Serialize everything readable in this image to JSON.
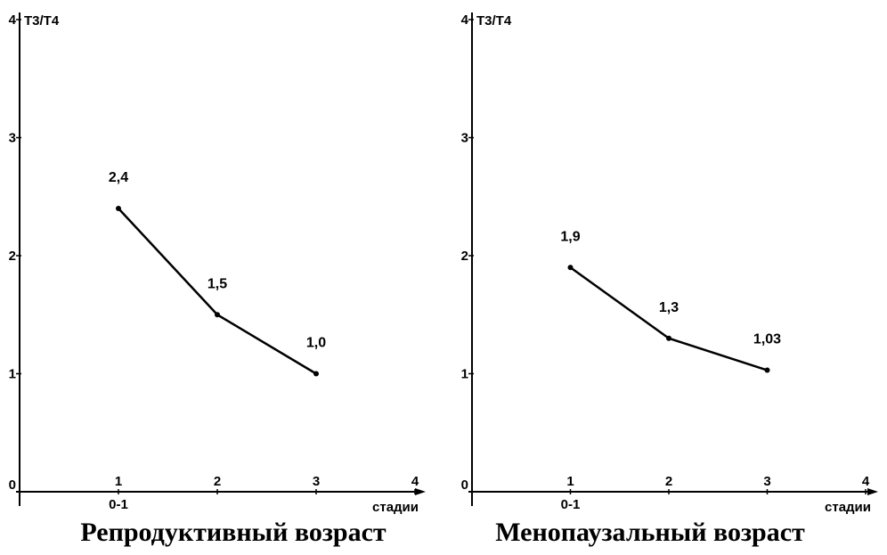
{
  "chart_data": [
    {
      "type": "line",
      "title": "Репродуктивный возраст",
      "ylabel": "Т3/Т4",
      "xlabel": "стадии",
      "x_ticks": [
        "1",
        "2",
        "3",
        "4"
      ],
      "x_sub_tick": "0-1",
      "y_ticks": [
        "0",
        "1",
        "2",
        "3",
        "4"
      ],
      "xlim": [
        0,
        4
      ],
      "ylim": [
        0,
        4
      ],
      "grid": false,
      "x": [
        1,
        2,
        3
      ],
      "values": [
        2.4,
        1.5,
        1.0
      ],
      "value_labels": [
        "2,4",
        "1,5",
        "1,0"
      ]
    },
    {
      "type": "line",
      "title": "Менопаузальный возраст",
      "ylabel": "Т3/Т4",
      "xlabel": "стадии",
      "x_ticks": [
        "1",
        "2",
        "3",
        "4"
      ],
      "x_sub_tick": "0-1",
      "y_ticks": [
        "0",
        "1",
        "2",
        "3",
        "4"
      ],
      "xlim": [
        0,
        4
      ],
      "ylim": [
        0,
        4
      ],
      "grid": false,
      "x": [
        1,
        2,
        3
      ],
      "values": [
        1.9,
        1.3,
        1.03
      ],
      "value_labels": [
        "1,9",
        "1,3",
        "1,03"
      ]
    }
  ]
}
